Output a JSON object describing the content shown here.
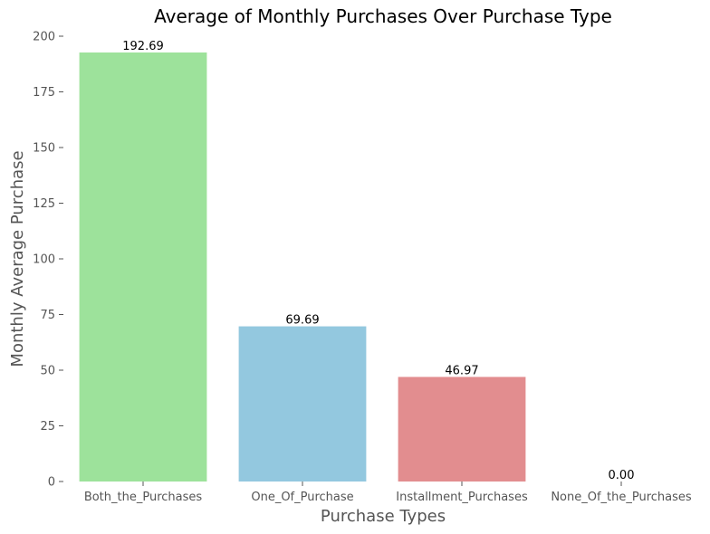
{
  "chart_data": {
    "type": "bar",
    "title": "Average of Monthly Purchases Over Purchase Type",
    "xlabel": "Purchase Types",
    "ylabel": "Monthly Average Purchase",
    "categories": [
      "Both_the_Purchases",
      "One_Of_Purchase",
      "Installment_Purchases",
      "None_Of_the_Purchases"
    ],
    "values": [
      192.69,
      69.69,
      46.97,
      0.0
    ],
    "data_labels": [
      "192.69",
      "69.69",
      "46.97",
      "0.00"
    ],
    "colors": [
      "#9de29b",
      "#93c8df",
      "#e28d8f",
      "#c9c9c9"
    ],
    "ylim": [
      0,
      200
    ],
    "yticks": [
      0,
      25,
      50,
      75,
      100,
      125,
      150,
      175,
      200
    ],
    "grid": false,
    "legend": "none"
  }
}
